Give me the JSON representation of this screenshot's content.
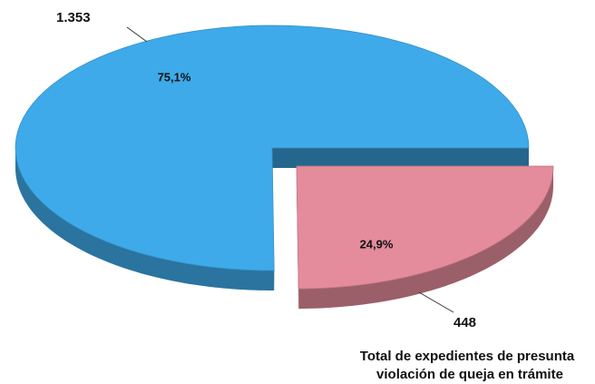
{
  "chart_data": {
    "type": "pie",
    "title": [
      "Total de expedientes de presunta",
      "violación  de queja en trámite"
    ],
    "values": [
      1353,
      448
    ],
    "value_labels": [
      "1.353",
      "448"
    ],
    "percentages": [
      75.1,
      24.9
    ],
    "percentage_labels": [
      "75,1%",
      "24,9%"
    ],
    "colors": [
      "#3eaaea",
      "#e48c9c"
    ]
  }
}
